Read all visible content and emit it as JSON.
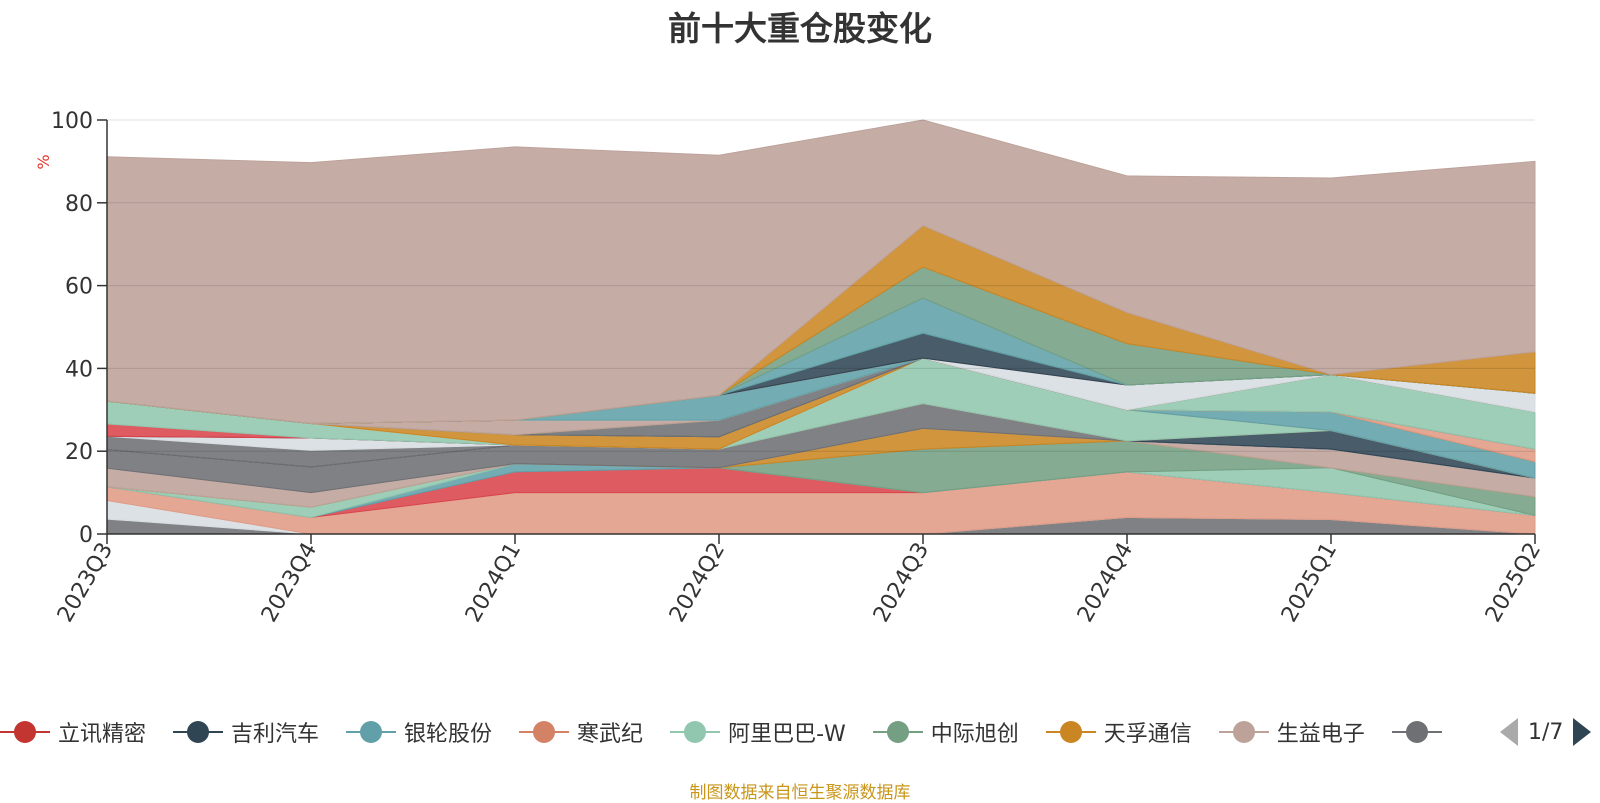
{
  "chart_data": {
    "type": "area",
    "title": "前十大重仓股变化",
    "ylabel": "%",
    "ylim": [
      0,
      100
    ],
    "yticks": [
      0,
      20,
      40,
      60,
      80,
      100
    ],
    "categories": [
      "2023Q3",
      "2023Q4",
      "2024Q1",
      "2024Q2",
      "2024Q3",
      "2024Q4",
      "2025Q1",
      "2025Q2"
    ],
    "series": [
      {
        "color": "#6e7074",
        "values": [
          3.6,
          0,
          0,
          0,
          0,
          4,
          3.5,
          0
        ]
      },
      {
        "color": "#d7dde1",
        "values": [
          4.5,
          0,
          0,
          0,
          0,
          0,
          0,
          0
        ]
      },
      {
        "color": "#e09b85",
        "values": [
          3.3,
          4.0,
          10.0,
          10.0,
          10.0,
          11.0,
          6.5,
          4.5
        ]
      },
      {
        "name": "立讯精密",
        "color": "#d9444c",
        "values": [
          0,
          0,
          5.0,
          6.0,
          0,
          0,
          0,
          0
        ]
      },
      {
        "name": "银轮股份",
        "color": "#61a0a8",
        "values": [
          0,
          0,
          2.0,
          0,
          0,
          0,
          0,
          0
        ]
      },
      {
        "name": "阿里巴巴-W",
        "color": "#91c7ae",
        "values": [
          0,
          2.5,
          0,
          0,
          0,
          0,
          6,
          0
        ]
      },
      {
        "name": "中际旭创",
        "color": "#749f83",
        "values": [
          0,
          0,
          0,
          0,
          10.5,
          7.5,
          0,
          4.5
        ]
      },
      {
        "name": "天孚通信",
        "color": "#ca8622",
        "values": [
          0,
          0,
          0,
          0,
          5,
          0,
          0,
          0
        ]
      },
      {
        "name": "生益电子",
        "color": "#bda29a",
        "values": [
          4.5,
          3.5,
          0,
          0,
          0,
          0,
          4.5,
          4.5
        ]
      },
      {
        "color": "#6e7074",
        "values": [
          4.5,
          6.2,
          4.5,
          4.5,
          6,
          0,
          0,
          0
        ]
      },
      {
        "name": "吉利汽车",
        "color": "#2f4554",
        "values": [
          0,
          0,
          0,
          0,
          0,
          0,
          0,
          0
        ]
      },
      {
        "color": "#6e7074",
        "values": [
          3.2,
          4.0,
          0,
          0,
          0,
          0,
          0,
          0
        ]
      },
      {
        "color": "#d7dde1",
        "values": [
          0,
          3.0,
          0,
          0,
          0,
          0,
          0,
          0
        ]
      },
      {
        "color": "#2f4554",
        "values": [
          0,
          0,
          0,
          0,
          0,
          0,
          4.5,
          0
        ]
      },
      {
        "color": "#d9444c",
        "values": [
          3.0,
          0,
          0,
          0,
          0,
          0,
          0,
          0
        ]
      },
      {
        "color": "#91c7ae",
        "values": [
          5.5,
          3.5,
          0,
          0,
          11.0,
          7.5,
          0,
          0
        ]
      },
      {
        "color": "#d7dde1",
        "values": [
          0,
          0,
          0,
          0,
          0,
          0,
          0,
          0
        ]
      },
      {
        "color": "#ca8622",
        "values": [
          0,
          0,
          2.5,
          3.0,
          0,
          0,
          0,
          0
        ]
      },
      {
        "color": "#91c7ae",
        "values": [
          0,
          0,
          0,
          0,
          0,
          0,
          0,
          0
        ]
      },
      {
        "color": "#61a0a8",
        "values": [
          0,
          0,
          0,
          0,
          0,
          0,
          4.5,
          4.0
        ]
      },
      {
        "color": "#e09b85",
        "values": [
          0,
          0,
          0,
          0,
          0,
          0,
          0,
          0
        ]
      },
      {
        "color": "#2f4554",
        "values": [
          0,
          0,
          0,
          0,
          0,
          0,
          0,
          0
        ]
      },
      {
        "color": "#6e7074",
        "values": [
          0,
          0,
          0,
          4.0,
          0,
          0,
          0,
          0
        ]
      },
      {
        "color": "#bda29a",
        "values": [
          0,
          0,
          0,
          0,
          0,
          0,
          0,
          0
        ]
      },
      {
        "color": "#ca8622",
        "values": [
          0,
          0,
          0,
          0,
          0,
          0,
          0,
          0
        ]
      },
      {
        "color": "#e09b85",
        "values": [
          0,
          0,
          0,
          0,
          0,
          0,
          0,
          3.0
        ]
      },
      {
        "color": "#749f83",
        "values": [
          0,
          0,
          0,
          0,
          0,
          0,
          0,
          0
        ]
      },
      {
        "color": "#bda29a",
        "values": [
          0,
          0,
          3.5,
          0,
          0,
          0,
          0,
          0
        ]
      },
      {
        "color": "#d7dde1",
        "values": [
          0,
          0,
          0,
          0,
          0,
          0,
          0,
          0
        ]
      },
      {
        "color": "#61a0a8",
        "values": [
          0,
          0,
          0,
          6.0,
          0,
          0,
          0,
          0
        ]
      },
      {
        "color": "#749f83",
        "values": [
          0,
          0,
          0,
          0,
          0,
          0,
          0,
          0
        ]
      },
      {
        "color": "#d9444c",
        "values": [
          0,
          0,
          0,
          0,
          0,
          0,
          0,
          0
        ]
      },
      {
        "color": "#91c7ae",
        "values": [
          0,
          0,
          0,
          0,
          0,
          0,
          9.0,
          9.0
        ]
      },
      {
        "color": "#2f4554",
        "values": [
          0,
          0,
          0,
          0,
          0,
          0,
          0,
          0
        ]
      },
      {
        "color": "#749f83",
        "values": [
          0,
          0,
          0,
          0,
          0,
          0,
          0,
          0
        ]
      },
      {
        "color": "#ca8622",
        "values": [
          0,
          0,
          0,
          0,
          0,
          0,
          0,
          0
        ]
      },
      {
        "color": "#6e7074",
        "values": [
          0,
          0,
          0,
          0,
          0,
          0,
          0,
          0
        ]
      },
      {
        "color": "#d7dde1",
        "values": [
          0,
          0,
          0,
          0,
          0,
          6.0,
          0,
          4.5
        ]
      },
      {
        "color": "#e09b85",
        "values": [
          0,
          0,
          0,
          0,
          0,
          0,
          0,
          0
        ]
      },
      {
        "color": "#2f4554",
        "values": [
          0,
          0,
          0,
          0,
          6,
          0,
          0,
          0
        ]
      },
      {
        "color": "#749f83",
        "values": [
          0,
          0,
          0,
          0,
          0,
          0,
          0,
          0
        ]
      },
      {
        "color": "#61a0a8",
        "values": [
          0,
          0,
          0,
          0,
          8.5,
          0,
          0,
          0
        ]
      },
      {
        "color": "#749f83",
        "values": [
          0,
          0,
          0,
          0,
          7.5,
          10.0,
          0,
          0
        ]
      },
      {
        "color": "#ca8622",
        "values": [
          0,
          0,
          0,
          0,
          10.0,
          7.5,
          0,
          10.0
        ]
      },
      {
        "color": "#bda29a",
        "values": [
          59,
          63,
          66,
          58,
          25.5,
          33,
          47.5,
          46
        ]
      }
    ],
    "grid": true,
    "legend_position": "bottom",
    "legend_page": "1/7"
  },
  "legend": {
    "items": [
      {
        "label": "立讯精密",
        "color": "#c23531"
      },
      {
        "label": "吉利汽车",
        "color": "#2f4554"
      },
      {
        "label": "银轮股份",
        "color": "#61a0a8"
      },
      {
        "label": "寒武纪",
        "color": "#d48265"
      },
      {
        "label": "阿里巴巴-W",
        "color": "#91c7ae"
      },
      {
        "label": "中际旭创",
        "color": "#749f83"
      },
      {
        "label": "天孚通信",
        "color": "#ca8622"
      },
      {
        "label": "生益电子",
        "color": "#bda29a"
      },
      {
        "label": "",
        "color": "#6e7074"
      }
    ],
    "page": "1/7"
  },
  "source_note": "制图数据来自恒生聚源数据库"
}
